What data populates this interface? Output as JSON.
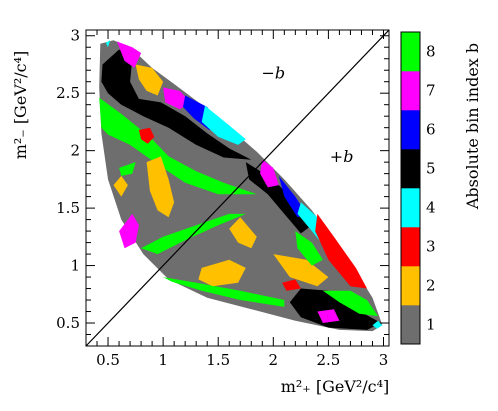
{
  "chart_data": {
    "type": "heatmap",
    "title": "",
    "xlabel": "m²₊ [GeV²/c⁴]",
    "ylabel": "m²₋ [GeV²/c⁴]",
    "xlim": [
      0.3,
      3.05
    ],
    "ylim": [
      0.3,
      3.05
    ],
    "x_ticks": [
      {
        "value": 0.5,
        "label": "0.5"
      },
      {
        "value": 1.0,
        "label": "1"
      },
      {
        "value": 1.5,
        "label": "1.5"
      },
      {
        "value": 2.0,
        "label": "2"
      },
      {
        "value": 2.5,
        "label": "2.5"
      },
      {
        "value": 3.0,
        "label": "3"
      }
    ],
    "y_ticks": [
      {
        "value": 0.5,
        "label": "0.5"
      },
      {
        "value": 1.0,
        "label": "1"
      },
      {
        "value": 1.5,
        "label": "1.5"
      },
      {
        "value": 2.0,
        "label": "2"
      },
      {
        "value": 2.5,
        "label": "2.5"
      },
      {
        "value": 3.0,
        "label": "3"
      }
    ],
    "diagonal": {
      "from": [
        0.3,
        0.3
      ],
      "to": [
        3.05,
        3.05
      ]
    },
    "region_labels": [
      {
        "text": "−b",
        "x": 2.0,
        "y": 2.63
      },
      {
        "text": "+b",
        "x": 2.62,
        "y": 1.9
      }
    ],
    "colorbar": {
      "label": "Absolute bin index b",
      "bins": [
        {
          "index": 1,
          "label": "1",
          "color": "#6e6e6e"
        },
        {
          "index": 2,
          "label": "2",
          "color": "#ffc000"
        },
        {
          "index": 3,
          "label": "3",
          "color": "#ff0000"
        },
        {
          "index": 4,
          "label": "4",
          "color": "#00ffff"
        },
        {
          "index": 5,
          "label": "5",
          "color": "#000000"
        },
        {
          "index": 6,
          "label": "6",
          "color": "#0000ff"
        },
        {
          "index": 7,
          "label": "7",
          "color": "#ff00ff"
        },
        {
          "index": 8,
          "label": "8",
          "color": "#00ff00"
        }
      ]
    },
    "kinematic_boundary": [
      [
        0.43,
        2.93
      ],
      [
        0.55,
        2.96
      ],
      [
        0.7,
        2.9
      ],
      [
        0.9,
        2.72
      ],
      [
        1.1,
        2.58
      ],
      [
        1.35,
        2.4
      ],
      [
        1.6,
        2.2
      ],
      [
        1.85,
        1.99
      ],
      [
        2.1,
        1.75
      ],
      [
        2.35,
        1.48
      ],
      [
        2.55,
        1.22
      ],
      [
        2.75,
        0.95
      ],
      [
        2.9,
        0.72
      ],
      [
        2.99,
        0.48
      ],
      [
        2.9,
        0.43
      ],
      [
        2.6,
        0.44
      ],
      [
        2.2,
        0.52
      ],
      [
        1.8,
        0.62
      ],
      [
        1.4,
        0.72
      ],
      [
        1.05,
        0.88
      ],
      [
        0.82,
        1.1
      ],
      [
        0.62,
        1.4
      ],
      [
        0.5,
        1.75
      ],
      [
        0.44,
        2.15
      ],
      [
        0.42,
        2.55
      ],
      [
        0.43,
        2.93
      ]
    ],
    "bin_regions": [
      {
        "bin": 8,
        "points": [
          [
            0.42,
            2.46
          ],
          [
            0.62,
            2.32
          ],
          [
            0.88,
            2.12
          ],
          [
            1.05,
            1.95
          ],
          [
            1.3,
            1.82
          ],
          [
            1.55,
            1.72
          ],
          [
            1.85,
            1.62
          ],
          [
            1.5,
            1.62
          ],
          [
            1.2,
            1.72
          ],
          [
            0.95,
            1.88
          ],
          [
            0.7,
            2.05
          ],
          [
            0.5,
            2.14
          ],
          [
            0.44,
            2.2
          ]
        ]
      },
      {
        "bin": 5,
        "points": [
          [
            0.45,
            2.75
          ],
          [
            0.6,
            2.88
          ],
          [
            0.72,
            2.8
          ],
          [
            0.7,
            2.6
          ],
          [
            0.78,
            2.45
          ],
          [
            0.98,
            2.42
          ],
          [
            1.2,
            2.3
          ],
          [
            1.4,
            2.15
          ],
          [
            1.6,
            2.02
          ],
          [
            1.8,
            1.92
          ],
          [
            1.55,
            1.94
          ],
          [
            1.3,
            2.05
          ],
          [
            1.05,
            2.2
          ],
          [
            0.82,
            2.3
          ],
          [
            0.62,
            2.4
          ],
          [
            0.5,
            2.5
          ],
          [
            0.44,
            2.6
          ]
        ]
      },
      {
        "bin": 2,
        "points": [
          [
            0.75,
            2.75
          ],
          [
            0.9,
            2.72
          ],
          [
            1.0,
            2.6
          ],
          [
            0.95,
            2.48
          ],
          [
            0.85,
            2.52
          ],
          [
            0.78,
            2.62
          ]
        ]
      },
      {
        "bin": 7,
        "points": [
          [
            0.58,
            2.95
          ],
          [
            0.72,
            2.9
          ],
          [
            0.8,
            2.85
          ],
          [
            0.74,
            2.72
          ],
          [
            0.65,
            2.78
          ]
        ]
      },
      {
        "bin": 7,
        "points": [
          [
            1.0,
            2.55
          ],
          [
            1.15,
            2.52
          ],
          [
            1.25,
            2.42
          ],
          [
            1.15,
            2.36
          ],
          [
            1.02,
            2.42
          ]
        ]
      },
      {
        "bin": 6,
        "points": [
          [
            1.2,
            2.48
          ],
          [
            1.4,
            2.38
          ],
          [
            1.5,
            2.25
          ],
          [
            1.42,
            2.18
          ],
          [
            1.28,
            2.28
          ],
          [
            1.18,
            2.38
          ]
        ]
      },
      {
        "bin": 4,
        "points": [
          [
            1.38,
            2.39
          ],
          [
            1.6,
            2.22
          ],
          [
            1.75,
            2.1
          ],
          [
            1.68,
            2.05
          ],
          [
            1.5,
            2.12
          ],
          [
            1.35,
            2.25
          ]
        ]
      },
      {
        "bin": 3,
        "points": [
          [
            0.78,
            2.18
          ],
          [
            0.88,
            2.2
          ],
          [
            0.92,
            2.12
          ],
          [
            0.86,
            2.06
          ],
          [
            0.8,
            2.1
          ]
        ]
      },
      {
        "bin": 2,
        "points": [
          [
            0.85,
            1.9
          ],
          [
            0.98,
            1.95
          ],
          [
            1.05,
            1.75
          ],
          [
            1.1,
            1.55
          ],
          [
            1.05,
            1.42
          ],
          [
            0.95,
            1.48
          ],
          [
            0.88,
            1.65
          ]
        ]
      },
      {
        "bin": 2,
        "points": [
          [
            0.55,
            1.7
          ],
          [
            0.62,
            1.78
          ],
          [
            0.68,
            1.7
          ],
          [
            0.62,
            1.6
          ]
        ]
      },
      {
        "bin": 8,
        "points": [
          [
            0.6,
            1.85
          ],
          [
            0.75,
            1.9
          ],
          [
            0.72,
            1.8
          ],
          [
            0.62,
            1.78
          ]
        ]
      },
      {
        "bin": 7,
        "points": [
          [
            0.6,
            1.3
          ],
          [
            0.72,
            1.45
          ],
          [
            0.78,
            1.35
          ],
          [
            0.75,
            1.2
          ],
          [
            0.65,
            1.15
          ]
        ]
      },
      {
        "bin": 8,
        "points": [
          [
            0.8,
            1.15
          ],
          [
            1.0,
            1.25
          ],
          [
            1.3,
            1.35
          ],
          [
            1.6,
            1.45
          ],
          [
            1.75,
            1.45
          ],
          [
            1.5,
            1.35
          ],
          [
            1.2,
            1.22
          ],
          [
            0.95,
            1.1
          ]
        ]
      },
      {
        "bin": 8,
        "points": [
          [
            1.0,
            0.9
          ],
          [
            1.3,
            0.85
          ],
          [
            1.7,
            0.78
          ],
          [
            2.1,
            0.7
          ],
          [
            2.1,
            0.64
          ],
          [
            1.7,
            0.7
          ],
          [
            1.35,
            0.78
          ],
          [
            1.08,
            0.86
          ]
        ]
      },
      {
        "bin": 2,
        "points": [
          [
            1.35,
            0.98
          ],
          [
            1.6,
            1.05
          ],
          [
            1.75,
            0.98
          ],
          [
            1.68,
            0.85
          ],
          [
            1.45,
            0.82
          ],
          [
            1.32,
            0.88
          ]
        ]
      },
      {
        "bin": 2,
        "points": [
          [
            1.6,
            1.32
          ],
          [
            1.7,
            1.42
          ],
          [
            1.85,
            1.25
          ],
          [
            1.8,
            1.15
          ],
          [
            1.68,
            1.2
          ]
        ]
      },
      {
        "bin": 3,
        "points": [
          [
            2.08,
            0.85
          ],
          [
            2.2,
            0.88
          ],
          [
            2.25,
            0.8
          ],
          [
            2.12,
            0.78
          ]
        ]
      },
      {
        "bin": 2,
        "points": [
          [
            2.0,
            1.1
          ],
          [
            2.3,
            1.05
          ],
          [
            2.5,
            0.9
          ],
          [
            2.4,
            0.82
          ],
          [
            2.15,
            0.9
          ]
        ]
      },
      {
        "bin": 5,
        "points": [
          [
            2.25,
            0.8
          ],
          [
            2.5,
            0.78
          ],
          [
            2.75,
            0.62
          ],
          [
            2.98,
            0.5
          ],
          [
            2.85,
            0.44
          ],
          [
            2.5,
            0.46
          ],
          [
            2.25,
            0.55
          ],
          [
            2.15,
            0.68
          ]
        ]
      },
      {
        "bin": 8,
        "points": [
          [
            2.45,
            0.78
          ],
          [
            2.7,
            0.78
          ],
          [
            2.85,
            0.7
          ],
          [
            2.95,
            0.56
          ],
          [
            2.78,
            0.58
          ],
          [
            2.6,
            0.68
          ]
        ]
      },
      {
        "bin": 7,
        "points": [
          [
            2.4,
            0.6
          ],
          [
            2.55,
            0.62
          ],
          [
            2.6,
            0.52
          ],
          [
            2.45,
            0.5
          ]
        ]
      },
      {
        "bin": 4,
        "points": [
          [
            2.95,
            0.52
          ],
          [
            2.99,
            0.48
          ],
          [
            2.94,
            0.45
          ],
          [
            2.9,
            0.48
          ]
        ]
      },
      {
        "bin": 5,
        "points": [
          [
            1.75,
            1.9
          ],
          [
            2.0,
            1.75
          ],
          [
            2.2,
            1.55
          ],
          [
            2.35,
            1.35
          ],
          [
            2.25,
            1.28
          ],
          [
            2.1,
            1.45
          ],
          [
            1.95,
            1.62
          ],
          [
            1.78,
            1.75
          ]
        ]
      },
      {
        "bin": 7,
        "points": [
          [
            1.9,
            1.92
          ],
          [
            2.0,
            1.85
          ],
          [
            2.05,
            1.7
          ],
          [
            1.95,
            1.68
          ],
          [
            1.88,
            1.8
          ]
        ]
      },
      {
        "bin": 6,
        "points": [
          [
            2.05,
            1.78
          ],
          [
            2.2,
            1.6
          ],
          [
            2.3,
            1.45
          ],
          [
            2.22,
            1.42
          ],
          [
            2.1,
            1.6
          ]
        ]
      },
      {
        "bin": 4,
        "points": [
          [
            2.25,
            1.55
          ],
          [
            2.4,
            1.42
          ],
          [
            2.55,
            1.2
          ],
          [
            2.5,
            1.12
          ],
          [
            2.35,
            1.3
          ],
          [
            2.22,
            1.45
          ]
        ]
      },
      {
        "bin": 3,
        "points": [
          [
            2.4,
            1.45
          ],
          [
            2.55,
            1.25
          ],
          [
            2.75,
            0.98
          ],
          [
            2.85,
            0.8
          ],
          [
            2.7,
            0.82
          ],
          [
            2.5,
            1.05
          ],
          [
            2.38,
            1.3
          ]
        ]
      },
      {
        "bin": 8,
        "points": [
          [
            2.2,
            1.3
          ],
          [
            2.35,
            1.2
          ],
          [
            2.45,
            1.05
          ],
          [
            2.35,
            1.0
          ],
          [
            2.22,
            1.15
          ]
        ]
      },
      {
        "bin": 4,
        "points": [
          [
            0.48,
            2.94
          ],
          [
            0.52,
            2.96
          ],
          [
            0.5,
            2.9
          ]
        ]
      }
    ]
  }
}
